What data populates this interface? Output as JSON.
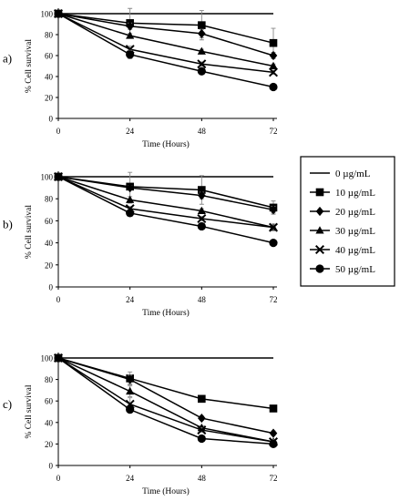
{
  "chart_data": [
    {
      "type": "line",
      "panel_label": "a)",
      "x": [
        0,
        24,
        48,
        72
      ],
      "xlabel": "Time (Hours)",
      "ylabel": "% Cell survival",
      "ylim": [
        0,
        100
      ],
      "yticks": [
        0,
        20,
        40,
        60,
        80,
        100
      ],
      "xticks": [
        0,
        24,
        48,
        72
      ],
      "grid": false,
      "series": [
        {
          "name": "0 µg/mL",
          "marker": "none",
          "values": [
            100,
            100,
            100,
            100
          ],
          "err": [
            0,
            0,
            0,
            0
          ]
        },
        {
          "name": "10 µg/mL",
          "marker": "square",
          "values": [
            100,
            91,
            89,
            72
          ],
          "err": [
            0,
            14,
            14,
            14
          ]
        },
        {
          "name": "20 µg/mL",
          "marker": "diamond",
          "values": [
            100,
            88,
            81,
            60
          ],
          "err": [
            0,
            3,
            4,
            3
          ]
        },
        {
          "name": "30 µg/mL",
          "marker": "triangle",
          "values": [
            100,
            79,
            64,
            50
          ],
          "err": [
            0,
            2,
            2,
            2
          ]
        },
        {
          "name": "40 µg/mL",
          "marker": "x",
          "values": [
            100,
            66,
            52,
            44
          ],
          "err": [
            0,
            3,
            2,
            2
          ]
        },
        {
          "name": "50 µg/mL",
          "marker": "circle",
          "values": [
            100,
            61,
            45,
            30
          ],
          "err": [
            0,
            4,
            2,
            3
          ]
        }
      ]
    },
    {
      "type": "line",
      "panel_label": "b)",
      "x": [
        0,
        24,
        48,
        72
      ],
      "xlabel": "Time (Hours)",
      "ylabel": "% Cell survival",
      "ylim": [
        0,
        100
      ],
      "yticks": [
        0,
        20,
        40,
        60,
        80,
        100
      ],
      "xticks": [
        0,
        24,
        48,
        72
      ],
      "grid": false,
      "series": [
        {
          "name": "0 µg/mL",
          "marker": "none",
          "values": [
            100,
            100,
            100,
            100
          ],
          "err": [
            0,
            0,
            0,
            0
          ]
        },
        {
          "name": "10 µg/mL",
          "marker": "square",
          "values": [
            100,
            91,
            88,
            72
          ],
          "err": [
            0,
            13,
            13,
            6
          ]
        },
        {
          "name": "20 µg/mL",
          "marker": "diamond",
          "values": [
            100,
            90,
            83,
            70
          ],
          "err": [
            0,
            2,
            3,
            3
          ]
        },
        {
          "name": "30 µg/mL",
          "marker": "triangle",
          "values": [
            100,
            79,
            69,
            54
          ],
          "err": [
            0,
            3,
            2,
            3
          ]
        },
        {
          "name": "40 µg/mL",
          "marker": "x",
          "values": [
            100,
            71,
            62,
            54
          ],
          "err": [
            0,
            2,
            2,
            3
          ]
        },
        {
          "name": "50 µg/mL",
          "marker": "circle",
          "values": [
            100,
            67,
            55,
            40
          ],
          "err": [
            0,
            2,
            2,
            2
          ]
        }
      ]
    },
    {
      "type": "line",
      "panel_label": "c)",
      "x": [
        0,
        24,
        48,
        72
      ],
      "xlabel": "Time (Hours)",
      "ylabel": "% Cell survival",
      "ylim": [
        0,
        100
      ],
      "yticks": [
        0,
        20,
        40,
        60,
        80,
        100
      ],
      "xticks": [
        0,
        24,
        48,
        72
      ],
      "grid": false,
      "series": [
        {
          "name": "0 µg/mL",
          "marker": "none",
          "values": [
            100,
            100,
            100,
            100
          ],
          "err": [
            0,
            0,
            0,
            0
          ]
        },
        {
          "name": "10 µg/mL",
          "marker": "square",
          "values": [
            100,
            81,
            62,
            53
          ],
          "err": [
            0,
            6,
            2,
            2
          ]
        },
        {
          "name": "20 µg/mL",
          "marker": "diamond",
          "values": [
            100,
            80,
            44,
            30
          ],
          "err": [
            0,
            4,
            2,
            2
          ]
        },
        {
          "name": "30 µg/mL",
          "marker": "triangle",
          "values": [
            100,
            69,
            35,
            22
          ],
          "err": [
            0,
            5,
            2,
            2
          ]
        },
        {
          "name": "40 µg/mL",
          "marker": "x",
          "values": [
            100,
            57,
            33,
            22
          ],
          "err": [
            0,
            6,
            2,
            2
          ]
        },
        {
          "name": "50 µg/mL",
          "marker": "circle",
          "values": [
            100,
            52,
            25,
            20
          ],
          "err": [
            0,
            3,
            2,
            2
          ]
        }
      ]
    }
  ],
  "legend": {
    "placement": "right",
    "entries": [
      "0 µg/mL",
      "10 µg/mL",
      "20 µg/mL",
      "30 µg/mL",
      "40 µg/mL",
      "50 µg/mL"
    ]
  }
}
